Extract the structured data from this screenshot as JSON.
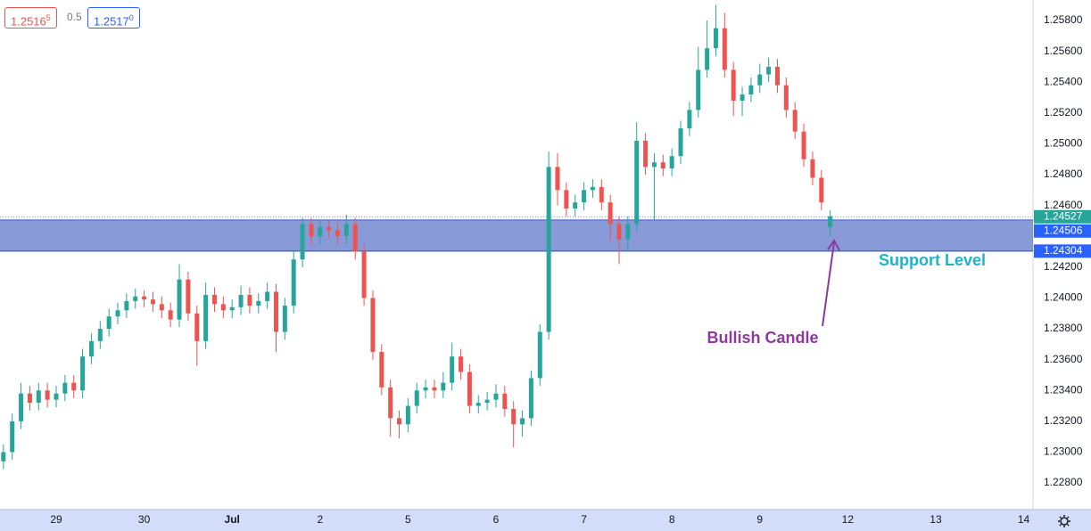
{
  "quote": {
    "bid": {
      "price": "1.2516",
      "pip": "5"
    },
    "spread": "0.5",
    "ask": {
      "price": "1.2517",
      "pip": "0"
    }
  },
  "chart_data": {
    "type": "candlestick",
    "up_color": "#26a69a",
    "down_color": "#ef5350",
    "grid": false,
    "x": [
      -0.6,
      -0.5,
      -0.4,
      -0.3,
      -0.2,
      -0.1,
      0,
      0.1,
      0.2,
      0.3,
      0.4,
      0.5,
      0.6,
      0.7,
      0.8,
      0.9,
      1,
      1.1,
      1.2,
      1.3,
      1.4,
      1.5,
      1.6,
      1.7,
      1.8,
      1.9,
      2,
      2.1,
      2.2,
      2.3,
      2.4,
      2.5,
      2.6,
      2.7,
      2.8,
      2.9,
      3,
      3.1,
      3.2,
      3.3,
      3.4,
      3.5,
      3.6,
      3.7,
      3.8,
      3.9,
      4,
      4.1,
      4.2,
      4.3,
      4.4,
      4.5,
      4.6,
      4.7,
      4.8,
      4.9,
      5,
      5.1,
      5.2,
      5.3,
      5.4,
      5.5,
      5.6,
      5.7,
      5.8,
      5.9,
      6,
      6.1,
      6.2,
      6.3,
      6.4,
      6.5,
      6.6,
      6.7,
      6.8,
      6.9,
      7,
      7.1,
      7.2,
      7.3,
      7.4,
      7.5,
      7.6,
      7.7,
      7.8,
      7.9,
      8,
      8.1,
      8.2,
      8.3,
      8.4,
      8.5,
      8.6,
      8.7,
      8.8
    ],
    "open": [
      1.2294,
      1.23,
      1.232,
      1.2338,
      1.2332,
      1.234,
      1.2334,
      1.2338,
      1.2345,
      1.234,
      1.2362,
      1.2372,
      1.238,
      1.2388,
      1.2392,
      1.2398,
      1.2401,
      1.2399,
      1.2396,
      1.2392,
      1.2386,
      1.2412,
      1.239,
      1.2372,
      1.2402,
      1.2396,
      1.2392,
      1.2394,
      1.2402,
      1.2395,
      1.2398,
      1.2404,
      1.2378,
      1.2395,
      1.2425,
      1.2448,
      1.244,
      1.2446,
      1.2444,
      1.244,
      1.2448,
      1.243,
      1.24,
      1.2365,
      1.2342,
      1.2322,
      1.2318,
      1.233,
      1.234,
      1.2342,
      1.234,
      1.2345,
      1.2362,
      1.2352,
      1.233,
      1.2332,
      1.2334,
      1.2338,
      1.2328,
      1.2318,
      1.2322,
      1.2348,
      1.2378,
      1.2485,
      1.247,
      1.2458,
      1.2462,
      1.247,
      1.2472,
      1.2462,
      1.2448,
      1.2438,
      1.2448,
      1.2502,
      1.2485,
      1.2488,
      1.2484,
      1.2492,
      1.251,
      1.2522,
      1.2548,
      1.2562,
      1.2575,
      1.2548,
      1.2528,
      1.2532,
      1.2538,
      1.2545,
      1.255,
      1.2538,
      1.2522,
      1.2508,
      1.249,
      1.2478,
      1.2446
    ],
    "high": [
      1.2305,
      1.2325,
      1.2345,
      1.2343,
      1.2345,
      1.2345,
      1.2343,
      1.235,
      1.235,
      1.2367,
      1.2377,
      1.2385,
      1.2393,
      1.2397,
      1.2403,
      1.2406,
      1.2405,
      1.2404,
      1.2401,
      1.2397,
      1.2422,
      1.2417,
      1.2395,
      1.241,
      1.2407,
      1.2401,
      1.2399,
      1.2408,
      1.2407,
      1.2403,
      1.241,
      1.2409,
      1.24,
      1.243,
      1.2452,
      1.2452,
      1.245,
      1.245,
      1.2449,
      1.2454,
      1.2452,
      1.2435,
      1.2405,
      1.237,
      1.2347,
      1.2327,
      1.2335,
      1.2345,
      1.2347,
      1.2347,
      1.2352,
      1.2371,
      1.2367,
      1.2357,
      1.2337,
      1.2339,
      1.2344,
      1.2343,
      1.2333,
      1.2327,
      1.2353,
      1.2383,
      1.2495,
      1.2494,
      1.2475,
      1.2467,
      1.2475,
      1.2477,
      1.2477,
      1.2467,
      1.2453,
      1.2453,
      1.2514,
      1.2507,
      1.2494,
      1.2493,
      1.2497,
      1.2515,
      1.2527,
      1.2563,
      1.258,
      1.259,
      1.2585,
      1.2553,
      1.2537,
      1.2543,
      1.2552,
      1.2556,
      1.2555,
      1.2543,
      1.2527,
      1.2513,
      1.2495,
      1.2483,
      1.2457
    ],
    "low": [
      1.2289,
      1.2295,
      1.2315,
      1.2327,
      1.2327,
      1.2329,
      1.2329,
      1.2333,
      1.2335,
      1.2335,
      1.2357,
      1.2367,
      1.2375,
      1.2383,
      1.2387,
      1.2393,
      1.2394,
      1.2391,
      1.2387,
      1.2381,
      1.2381,
      1.2385,
      1.2356,
      1.2367,
      1.2391,
      1.2387,
      1.2387,
      1.2389,
      1.239,
      1.239,
      1.2393,
      1.2365,
      1.2373,
      1.239,
      1.242,
      1.2435,
      1.2435,
      1.2439,
      1.2435,
      1.2435,
      1.2425,
      1.2395,
      1.236,
      1.2337,
      1.231,
      1.2309,
      1.2313,
      1.2325,
      1.2335,
      1.2335,
      1.2335,
      1.234,
      1.2347,
      1.2325,
      1.2325,
      1.2327,
      1.2329,
      1.2323,
      1.2303,
      1.231,
      1.2317,
      1.2343,
      1.2373,
      1.246,
      1.2453,
      1.2453,
      1.2457,
      1.2465,
      1.2457,
      1.2437,
      1.2422,
      1.243,
      1.2443,
      1.248,
      1.245,
      1.2479,
      1.2479,
      1.2487,
      1.2505,
      1.2517,
      1.2543,
      1.2557,
      1.2543,
      1.2518,
      1.2518,
      1.2527,
      1.2533,
      1.254,
      1.2533,
      1.2517,
      1.2503,
      1.2485,
      1.2473,
      1.2457,
      1.244
    ],
    "close": [
      1.23,
      1.232,
      1.2338,
      1.2332,
      1.234,
      1.2334,
      1.2338,
      1.2345,
      1.234,
      1.2362,
      1.2372,
      1.238,
      1.2388,
      1.2392,
      1.2398,
      1.2401,
      1.2399,
      1.2396,
      1.2392,
      1.2386,
      1.2412,
      1.239,
      1.2372,
      1.2402,
      1.2396,
      1.2392,
      1.2394,
      1.2402,
      1.2395,
      1.2398,
      1.2404,
      1.2378,
      1.2395,
      1.2425,
      1.2448,
      1.244,
      1.2446,
      1.2444,
      1.244,
      1.2448,
      1.243,
      1.24,
      1.2365,
      1.2342,
      1.2322,
      1.2318,
      1.233,
      1.234,
      1.2342,
      1.234,
      1.2345,
      1.2362,
      1.2352,
      1.233,
      1.2332,
      1.2334,
      1.2338,
      1.2328,
      1.2318,
      1.2322,
      1.2348,
      1.2378,
      1.2485,
      1.247,
      1.2458,
      1.2462,
      1.247,
      1.2472,
      1.2462,
      1.2448,
      1.2438,
      1.2448,
      1.2502,
      1.2485,
      1.2488,
      1.2484,
      1.2492,
      1.251,
      1.2522,
      1.2548,
      1.2562,
      1.2575,
      1.2548,
      1.2528,
      1.2532,
      1.2538,
      1.2545,
      1.255,
      1.2538,
      1.2522,
      1.2508,
      1.249,
      1.2478,
      1.2462,
      1.2453
    ],
    "xlim": [
      -0.639,
      11.106
    ],
    "xticks": [
      {
        "value": 0,
        "label": "29"
      },
      {
        "value": 1,
        "label": "30"
      },
      {
        "value": 2,
        "label": "Jul"
      },
      {
        "value": 3,
        "label": "2"
      },
      {
        "value": 4,
        "label": "5"
      },
      {
        "value": 5,
        "label": "6"
      },
      {
        "value": 6,
        "label": "7"
      },
      {
        "value": 7,
        "label": "8"
      },
      {
        "value": 8,
        "label": "9"
      },
      {
        "value": 9,
        "label": "12"
      },
      {
        "value": 10,
        "label": "13"
      },
      {
        "value": 11,
        "label": "14"
      }
    ],
    "ylim": [
      1.22627,
      1.25933
    ],
    "yticks": [
      {
        "value": 1.228,
        "label": "1.22800"
      },
      {
        "value": 1.23,
        "label": "1.23000"
      },
      {
        "value": 1.232,
        "label": "1.23200"
      },
      {
        "value": 1.234,
        "label": "1.23400"
      },
      {
        "value": 1.236,
        "label": "1.23600"
      },
      {
        "value": 1.238,
        "label": "1.23800"
      },
      {
        "value": 1.24,
        "label": "1.24000"
      },
      {
        "value": 1.242,
        "label": "1.24200"
      },
      {
        "value": 1.246,
        "label": "1.24600"
      },
      {
        "value": 1.248,
        "label": "1.24800"
      },
      {
        "value": 1.25,
        "label": "1.25000"
      },
      {
        "value": 1.252,
        "label": "1.25200"
      },
      {
        "value": 1.254,
        "label": "1.25400"
      },
      {
        "value": 1.256,
        "label": "1.25600"
      },
      {
        "value": 1.258,
        "label": "1.25800"
      }
    ],
    "current_price": 1.24527,
    "zone": {
      "top": 1.24506,
      "bottom": 1.24304,
      "color": "#3f5ec0"
    },
    "annotations": {
      "support": "Support Level",
      "bullish": "Bullish Candle"
    }
  }
}
